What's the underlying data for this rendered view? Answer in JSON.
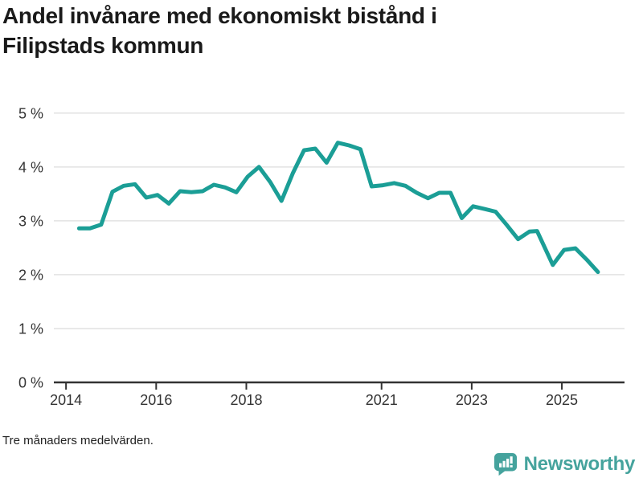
{
  "title": "Andel invånare med ekonomiskt bistånd i Filipstads kommun",
  "footnote": "Tre månaders medelvärden.",
  "branding": {
    "name": "Newsworthy",
    "icon": "newsworthy-speech-bubble-bar-chart-icon",
    "color": "#45a39d"
  },
  "colors": {
    "line": "#1b9e96",
    "grid": "#e2e2e2",
    "axis": "#333333",
    "tick_text": "#333333",
    "title_text": "#1a1a1a"
  },
  "chart_data": {
    "type": "line",
    "title": "Andel invånare med ekonomiskt bistånd i Filipstads kommun",
    "subtitle": "Tre månaders medelvärden.",
    "xlabel": "",
    "ylabel": "",
    "legend": "none",
    "grid": "horizontal",
    "xlim": [
      2013.73,
      2026.39
    ],
    "ylim": [
      0,
      5.31
    ],
    "x_ticks": [
      2014,
      2016,
      2018,
      2021,
      2023,
      2025
    ],
    "x_tick_labels": [
      "2014",
      "2016",
      "2018",
      "2021",
      "2023",
      "2025"
    ],
    "y_ticks": [
      0,
      1,
      2,
      3,
      4,
      5
    ],
    "y_tick_labels": [
      "0 %",
      "1 %",
      "2 %",
      "3 %",
      "4 %",
      "5 %"
    ],
    "series": [
      {
        "name": "Andel invånare med ekonomiskt bistånd",
        "unit": "%",
        "x": [
          2014.29,
          2014.53,
          2014.78,
          2015.03,
          2015.28,
          2015.53,
          2015.78,
          2016.03,
          2016.28,
          2016.53,
          2016.78,
          2017.03,
          2017.28,
          2017.53,
          2017.78,
          2018.03,
          2018.28,
          2018.53,
          2018.78,
          2019.03,
          2019.28,
          2019.53,
          2019.78,
          2020.03,
          2020.28,
          2020.53,
          2020.78,
          2021.03,
          2021.28,
          2021.53,
          2021.78,
          2022.03,
          2022.28,
          2022.53,
          2022.78,
          2023.03,
          2023.28,
          2023.53,
          2023.78,
          2024.03,
          2024.28,
          2024.45,
          2024.8,
          2025.05,
          2025.3,
          2025.55,
          2025.8
        ],
        "values": [
          2.86,
          2.86,
          2.93,
          3.54,
          3.65,
          3.68,
          3.43,
          3.48,
          3.32,
          3.55,
          3.53,
          3.55,
          3.67,
          3.62,
          3.53,
          3.82,
          4.0,
          3.72,
          3.37,
          3.88,
          4.31,
          4.34,
          4.08,
          4.45,
          4.4,
          4.33,
          3.64,
          3.66,
          3.7,
          3.65,
          3.52,
          3.42,
          3.52,
          3.52,
          3.05,
          3.27,
          3.22,
          3.17,
          2.92,
          2.66,
          2.8,
          2.81,
          2.18,
          2.46,
          2.49,
          2.28,
          2.05
        ]
      }
    ]
  }
}
